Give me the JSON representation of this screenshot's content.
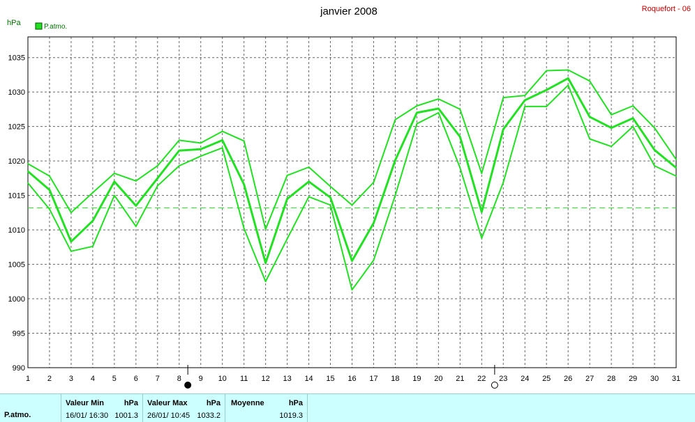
{
  "header": {
    "title": "janvier 2008",
    "station": "Roquefort - 06",
    "unit_label": "hPa",
    "legend_label": "P.atmo."
  },
  "colors": {
    "series": "#22e022",
    "mean_line": "#22e022",
    "grid": "#666666",
    "station_text": "#c00000",
    "stats_bg": "#ccffff"
  },
  "icons": {
    "moon_full": "full-moon-icon",
    "moon_new": "new-moon-icon"
  },
  "chart_data": {
    "type": "line",
    "title": "janvier 2008",
    "ylabel": "hPa",
    "ylim": [
      990,
      1038
    ],
    "yticks": [
      990,
      995,
      1000,
      1005,
      1010,
      1015,
      1020,
      1025,
      1030,
      1035
    ],
    "x": [
      1,
      2,
      3,
      4,
      5,
      6,
      7,
      8,
      9,
      10,
      11,
      12,
      13,
      14,
      15,
      16,
      17,
      18,
      19,
      20,
      21,
      22,
      23,
      24,
      25,
      26,
      27,
      28,
      29,
      30,
      31
    ],
    "xticks": [
      "1",
      "2",
      "3",
      "4",
      "5",
      "6",
      "7",
      "8",
      "9",
      "10",
      "11",
      "12",
      "13",
      "14",
      "15",
      "16",
      "17",
      "18",
      "19",
      "20",
      "21",
      "22",
      "23",
      "24",
      "25",
      "26",
      "27",
      "28",
      "29",
      "30",
      "31"
    ],
    "series": [
      {
        "name": "P.atmo.",
        "role": "max",
        "values": [
          1019.6,
          1017.8,
          1012.5,
          1015.4,
          1018.2,
          1017.1,
          1019.3,
          1023.0,
          1022.6,
          1024.3,
          1022.9,
          1010.1,
          1017.9,
          1019.1,
          1016.3,
          1013.6,
          1016.9,
          1026.0,
          1028.0,
          1029.0,
          1027.5,
          1018.2,
          1029.2,
          1029.5,
          1033.1,
          1033.2,
          1031.6,
          1026.7,
          1028.0,
          1024.8,
          1020.2
        ]
      },
      {
        "name": "P.atmo.",
        "role": "mean",
        "values": [
          1018.5,
          1015.8,
          1008.3,
          1011.3,
          1017.0,
          1013.5,
          1017.5,
          1021.5,
          1021.7,
          1023.0,
          1016.6,
          1005.2,
          1014.5,
          1017.0,
          1014.7,
          1005.5,
          1011.0,
          1020.1,
          1027.0,
          1027.6,
          1023.5,
          1012.6,
          1024.6,
          1028.8,
          1030.3,
          1032.0,
          1026.4,
          1024.8,
          1026.2,
          1021.6,
          1019.0
        ]
      },
      {
        "name": "P.atmo.",
        "role": "min",
        "values": [
          1016.8,
          1013.0,
          1006.9,
          1007.6,
          1015.0,
          1010.5,
          1016.4,
          1019.3,
          1020.7,
          1021.9,
          1010.2,
          1002.5,
          1008.7,
          1014.8,
          1013.6,
          1001.3,
          1005.6,
          1015.0,
          1025.4,
          1027.0,
          1019.0,
          1008.8,
          1016.9,
          1027.9,
          1027.9,
          1031.0,
          1023.2,
          1022.1,
          1025.0,
          1019.3,
          1017.8
        ]
      }
    ],
    "mean_reference": 1013.2,
    "moon_phases": [
      {
        "phase": "full-moon",
        "x": 8.4
      },
      {
        "phase": "new-moon",
        "x": 22.6
      }
    ],
    "grid": true,
    "legend": "top-left"
  },
  "stats": {
    "row_label": "P.atmo.",
    "min": {
      "header": "Valeur Min",
      "unit": "hPa",
      "when": "16/01/  16:30",
      "value": "1001.3"
    },
    "max": {
      "header": "Valeur Max",
      "unit": "hPa",
      "when": "26/01/  10:45",
      "value": "1033.2"
    },
    "mean": {
      "header": "Moyenne",
      "unit": "hPa",
      "value": "1019.3"
    }
  }
}
